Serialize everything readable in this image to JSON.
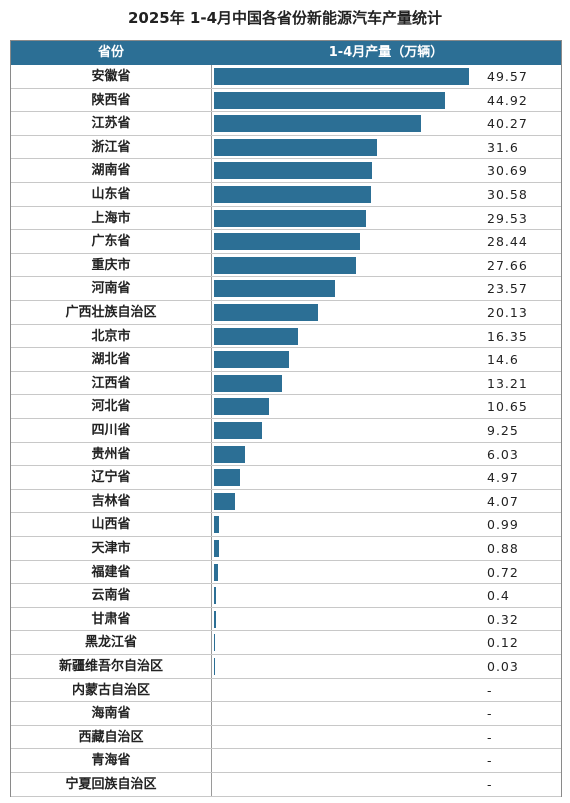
{
  "chart_data": {
    "type": "bar",
    "title": "2025年 1-4月中国各省份新能源汽车产量统计",
    "col_province": "省份",
    "col_value": "1-4月产量（万辆）",
    "xlim": [
      0,
      49.57
    ],
    "rows": [
      {
        "province": "安徽省",
        "value": 49.57,
        "label": "49.57"
      },
      {
        "province": "陕西省",
        "value": 44.92,
        "label": "44.92"
      },
      {
        "province": "江苏省",
        "value": 40.27,
        "label": "40.27"
      },
      {
        "province": "浙江省",
        "value": 31.6,
        "label": "31.6"
      },
      {
        "province": "湖南省",
        "value": 30.69,
        "label": "30.69"
      },
      {
        "province": "山东省",
        "value": 30.58,
        "label": "30.58"
      },
      {
        "province": "上海市",
        "value": 29.53,
        "label": "29.53"
      },
      {
        "province": "广东省",
        "value": 28.44,
        "label": "28.44"
      },
      {
        "province": "重庆市",
        "value": 27.66,
        "label": "27.66"
      },
      {
        "province": "河南省",
        "value": 23.57,
        "label": "23.57"
      },
      {
        "province": "广西壮族自治区",
        "value": 20.13,
        "label": "20.13"
      },
      {
        "province": "北京市",
        "value": 16.35,
        "label": "16.35"
      },
      {
        "province": "湖北省",
        "value": 14.6,
        "label": "14.6"
      },
      {
        "province": "江西省",
        "value": 13.21,
        "label": "13.21"
      },
      {
        "province": "河北省",
        "value": 10.65,
        "label": "10.65"
      },
      {
        "province": "四川省",
        "value": 9.25,
        "label": "9.25"
      },
      {
        "province": "贵州省",
        "value": 6.03,
        "label": "6.03"
      },
      {
        "province": "辽宁省",
        "value": 4.97,
        "label": "4.97"
      },
      {
        "province": "吉林省",
        "value": 4.07,
        "label": "4.07"
      },
      {
        "province": "山西省",
        "value": 0.99,
        "label": "0.99"
      },
      {
        "province": "天津市",
        "value": 0.88,
        "label": "0.88"
      },
      {
        "province": "福建省",
        "value": 0.72,
        "label": "0.72"
      },
      {
        "province": "云南省",
        "value": 0.4,
        "label": "0.4"
      },
      {
        "province": "甘肃省",
        "value": 0.32,
        "label": "0.32"
      },
      {
        "province": "黑龙江省",
        "value": 0.12,
        "label": "0.12"
      },
      {
        "province": "新疆维吾尔自治区",
        "value": 0.03,
        "label": "0.03"
      },
      {
        "province": "内蒙古自治区",
        "value": null,
        "label": "-"
      },
      {
        "province": "海南省",
        "value": null,
        "label": "-"
      },
      {
        "province": "西藏自治区",
        "value": null,
        "label": "-"
      },
      {
        "province": "青海省",
        "value": null,
        "label": "-"
      },
      {
        "province": "宁夏回族自治区",
        "value": null,
        "label": "-"
      }
    ],
    "bar_color": "#2c6f95",
    "header_color": "#2c6f95"
  }
}
